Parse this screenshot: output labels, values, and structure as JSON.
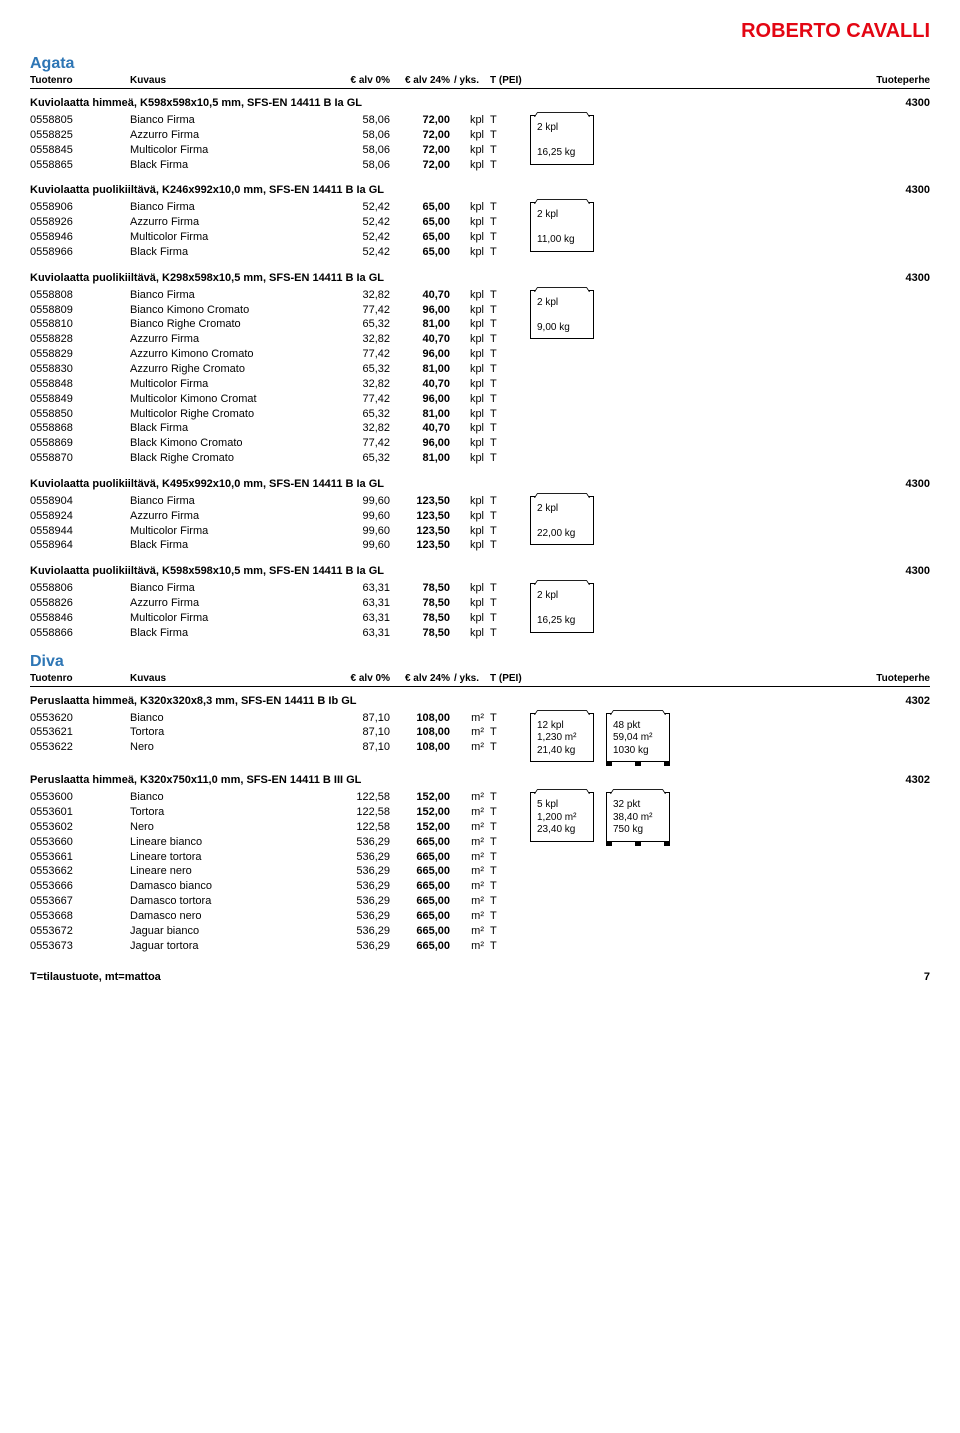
{
  "brand": "ROBERTO CAVALLI",
  "header": {
    "c1": "Tuotenro",
    "c2": "Kuvaus",
    "c3": "€ alv 0%",
    "c4": "€ alv 24%",
    "c5": "/ yks.",
    "c6": "T (PEI)",
    "c7": "Tuoteperhe"
  },
  "footer": {
    "left": "T=tilaustuote, mt=mattoa",
    "page": "7"
  },
  "collections": [
    {
      "name": "Agata",
      "showHeader": true,
      "sections": [
        {
          "title": "Kuviolaatta himmeä, K598x598x10,5 mm, SFS-EN 14411 B Ia GL",
          "code": "4300",
          "box1": [
            "2 kpl",
            "",
            "16,25 kg"
          ],
          "rows": [
            [
              "0558805",
              "Bianco Firma",
              "58,06",
              "72,00",
              "kpl",
              "T"
            ],
            [
              "0558825",
              "Azzurro Firma",
              "58,06",
              "72,00",
              "kpl",
              "T"
            ],
            [
              "0558845",
              "Multicolor Firma",
              "58,06",
              "72,00",
              "kpl",
              "T"
            ],
            [
              "0558865",
              "Black Firma",
              "58,06",
              "72,00",
              "kpl",
              "T"
            ]
          ]
        },
        {
          "title": "Kuviolaatta puolikiiltävä, K246x992x10,0 mm, SFS-EN 14411 B Ia GL",
          "code": "4300",
          "box1": [
            "2 kpl",
            "",
            "11,00 kg"
          ],
          "rows": [
            [
              "0558906",
              "Bianco Firma",
              "52,42",
              "65,00",
              "kpl",
              "T"
            ],
            [
              "0558926",
              "Azzurro Firma",
              "52,42",
              "65,00",
              "kpl",
              "T"
            ],
            [
              "0558946",
              "Multicolor Firma",
              "52,42",
              "65,00",
              "kpl",
              "T"
            ],
            [
              "0558966",
              "Black Firma",
              "52,42",
              "65,00",
              "kpl",
              "T"
            ]
          ]
        },
        {
          "title": "Kuviolaatta puolikiiltävä, K298x598x10,5 mm, SFS-EN 14411 B Ia GL",
          "code": "4300",
          "box1": [
            "2 kpl",
            "",
            "9,00 kg"
          ],
          "rows": [
            [
              "0558808",
              "Bianco Firma",
              "32,82",
              "40,70",
              "kpl",
              "T"
            ],
            [
              "0558809",
              "Bianco Kimono Cromato",
              "77,42",
              "96,00",
              "kpl",
              "T"
            ],
            [
              "0558810",
              "Bianco Righe Cromato",
              "65,32",
              "81,00",
              "kpl",
              "T"
            ],
            [
              "0558828",
              "Azzurro Firma",
              "32,82",
              "40,70",
              "kpl",
              "T"
            ],
            [
              "0558829",
              "Azzurro Kimono Cromato",
              "77,42",
              "96,00",
              "kpl",
              "T"
            ],
            [
              "0558830",
              "Azzurro Righe Cromato",
              "65,32",
              "81,00",
              "kpl",
              "T"
            ],
            [
              "0558848",
              "Multicolor Firma",
              "32,82",
              "40,70",
              "kpl",
              "T"
            ],
            [
              "0558849",
              "Multicolor Kimono Cromat",
              "77,42",
              "96,00",
              "kpl",
              "T"
            ],
            [
              "0558850",
              "Multicolor Righe Cromato",
              "65,32",
              "81,00",
              "kpl",
              "T"
            ],
            [
              "0558868",
              "Black Firma",
              "32,82",
              "40,70",
              "kpl",
              "T"
            ],
            [
              "0558869",
              "Black Kimono Cromato",
              "77,42",
              "96,00",
              "kpl",
              "T"
            ],
            [
              "0558870",
              "Black Righe Cromato",
              "65,32",
              "81,00",
              "kpl",
              "T"
            ]
          ]
        },
        {
          "title": "Kuviolaatta puolikiiltävä, K495x992x10,0 mm, SFS-EN 14411 B Ia GL",
          "code": "4300",
          "box1": [
            "2 kpl",
            "",
            "22,00 kg"
          ],
          "rows": [
            [
              "0558904",
              "Bianco Firma",
              "99,60",
              "123,50",
              "kpl",
              "T"
            ],
            [
              "0558924",
              "Azzurro Firma",
              "99,60",
              "123,50",
              "kpl",
              "T"
            ],
            [
              "0558944",
              "Multicolor Firma",
              "99,60",
              "123,50",
              "kpl",
              "T"
            ],
            [
              "0558964",
              "Black Firma",
              "99,60",
              "123,50",
              "kpl",
              "T"
            ]
          ]
        },
        {
          "title": "Kuviolaatta puolikiiltävä, K598x598x10,5 mm, SFS-EN 14411 B Ia GL",
          "code": "4300",
          "box1": [
            "2 kpl",
            "",
            "16,25 kg"
          ],
          "rows": [
            [
              "0558806",
              "Bianco Firma",
              "63,31",
              "78,50",
              "kpl",
              "T"
            ],
            [
              "0558826",
              "Azzurro Firma",
              "63,31",
              "78,50",
              "kpl",
              "T"
            ],
            [
              "0558846",
              "Multicolor Firma",
              "63,31",
              "78,50",
              "kpl",
              "T"
            ],
            [
              "0558866",
              "Black Firma",
              "63,31",
              "78,50",
              "kpl",
              "T"
            ]
          ]
        }
      ]
    },
    {
      "name": "Diva",
      "showHeader": true,
      "sections": [
        {
          "title": "Peruslaatta himmeä, K320x320x8,3 mm, SFS-EN 14411 B Ib GL",
          "code": "4302",
          "box1": [
            "12 kpl",
            "1,230 m²",
            "21,40 kg"
          ],
          "box2": [
            "48 pkt",
            "59,04 m²",
            "1030 kg"
          ],
          "rows": [
            [
              "0553620",
              "Bianco",
              "87,10",
              "108,00",
              "m²",
              "T"
            ],
            [
              "0553621",
              "Tortora",
              "87,10",
              "108,00",
              "m²",
              "T"
            ],
            [
              "0553622",
              "Nero",
              "87,10",
              "108,00",
              "m²",
              "T"
            ]
          ]
        },
        {
          "title": "Peruslaatta himmeä, K320x750x11,0 mm, SFS-EN 14411 B III GL",
          "code": "4302",
          "box1": [
            "5 kpl",
            "1,200 m²",
            "23,40 kg"
          ],
          "box2": [
            "32 pkt",
            "38,40 m²",
            "750 kg"
          ],
          "rows": [
            [
              "0553600",
              "Bianco",
              "122,58",
              "152,00",
              "m²",
              "T"
            ],
            [
              "0553601",
              "Tortora",
              "122,58",
              "152,00",
              "m²",
              "T"
            ],
            [
              "0553602",
              "Nero",
              "122,58",
              "152,00",
              "m²",
              "T"
            ],
            [
              "0553660",
              "Lineare bianco",
              "536,29",
              "665,00",
              "m²",
              "T"
            ],
            [
              "0553661",
              "Lineare tortora",
              "536,29",
              "665,00",
              "m²",
              "T"
            ],
            [
              "0553662",
              "Lineare nero",
              "536,29",
              "665,00",
              "m²",
              "T"
            ],
            [
              "0553666",
              "Damasco bianco",
              "536,29",
              "665,00",
              "m²",
              "T"
            ],
            [
              "0553667",
              "Damasco tortora",
              "536,29",
              "665,00",
              "m²",
              "T"
            ],
            [
              "0553668",
              "Damasco nero",
              "536,29",
              "665,00",
              "m²",
              "T"
            ],
            [
              "0553672",
              "Jaguar bianco",
              "536,29",
              "665,00",
              "m²",
              "T"
            ],
            [
              "0553673",
              "Jaguar tortora",
              "536,29",
              "665,00",
              "m²",
              "T"
            ]
          ]
        }
      ]
    }
  ]
}
